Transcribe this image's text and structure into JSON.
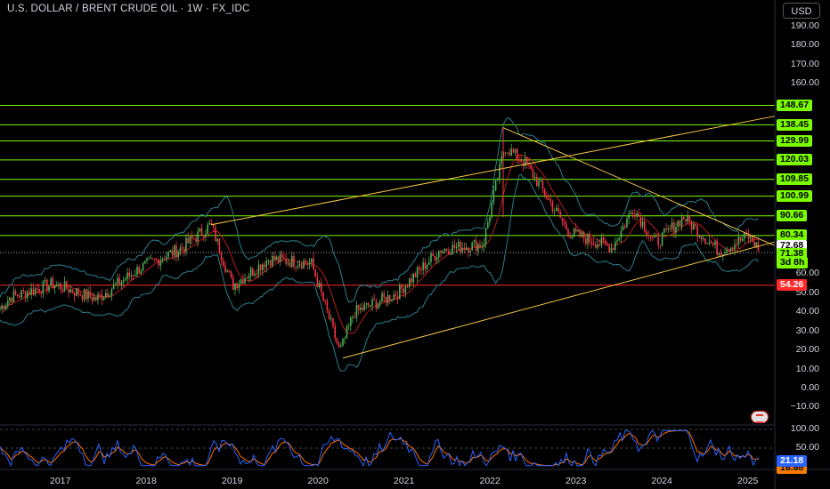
{
  "header": {
    "title": "U.S. DOLLAR / BRENT CRUDE OIL · 1W · FX_IDC",
    "currency_button": "USD"
  },
  "price_axis": {
    "ticks": [
      "190.00",
      "180.00",
      "170.00",
      "160.00",
      "60.00",
      "50.00",
      "40.00",
      "30.00",
      "20.00",
      "10.00",
      "0.00",
      "−10.00"
    ]
  },
  "price_levels": [
    {
      "label": "148.67",
      "value": 148.67,
      "color": "#7cfc00"
    },
    {
      "label": "138.45",
      "value": 138.45,
      "color": "#7cfc00"
    },
    {
      "label": "129.99",
      "value": 129.99,
      "color": "#7cfc00"
    },
    {
      "label": "120.03",
      "value": 120.03,
      "color": "#7cfc00"
    },
    {
      "label": "109.85",
      "value": 109.85,
      "color": "#7cfc00"
    },
    {
      "label": "100.99",
      "value": 100.99,
      "color": "#7cfc00"
    },
    {
      "label": "90.66",
      "value": 90.66,
      "color": "#7cfc00"
    },
    {
      "label": "80.34",
      "value": 80.34,
      "color": "#7cfc00"
    },
    {
      "label": "54.26",
      "value": 54.26,
      "color": "#ff2a2a"
    }
  ],
  "current_price": {
    "label": "71.38",
    "countdown": "3d 8h",
    "reference_label": "72.68",
    "color": "#7cfc00"
  },
  "oscillator": {
    "ticks": [
      "100.00",
      "50.00"
    ],
    "k_value": "21.18",
    "d_value": "16.68",
    "k_color": "#2962ff",
    "d_color": "#ff6d00"
  },
  "time_axis": {
    "labels": [
      "2017",
      "2018",
      "2019",
      "2020",
      "2021",
      "2022",
      "2023",
      "2024",
      "2025"
    ]
  },
  "colors": {
    "background": "#000000",
    "bull": "#26a69a",
    "bear": "#ef5350",
    "green_candle": "#4caf50",
    "red_candle": "#f23645",
    "trendline": "#f5c542",
    "bollinger": "#2a7f8f",
    "ma": "#b71c1c"
  },
  "chart_data": {
    "type": "line",
    "series": [
      {
        "x": [
          "2016-06",
          "2016-12",
          "2017-06",
          "2017-12",
          "2018-06",
          "2018-10",
          "2019-01",
          "2019-06",
          "2019-12",
          "2020-04",
          "2020-06",
          "2020-12",
          "2021-06",
          "2021-12",
          "2022-03",
          "2022-06",
          "2022-12",
          "2023-06",
          "2023-09",
          "2023-12",
          "2024-04",
          "2024-09",
          "2025-01",
          "2025-03"
        ],
        "values": [
          48,
          55,
          47,
          63,
          74,
          86,
          54,
          68,
          66,
          19,
          40,
          50,
          73,
          76,
          127,
          118,
          82,
          74,
          95,
          76,
          90,
          72,
          80,
          71
        ]
      }
    ],
    "ylim": [
      -10,
      195
    ],
    "xlabel": "",
    "ylabel": ""
  }
}
